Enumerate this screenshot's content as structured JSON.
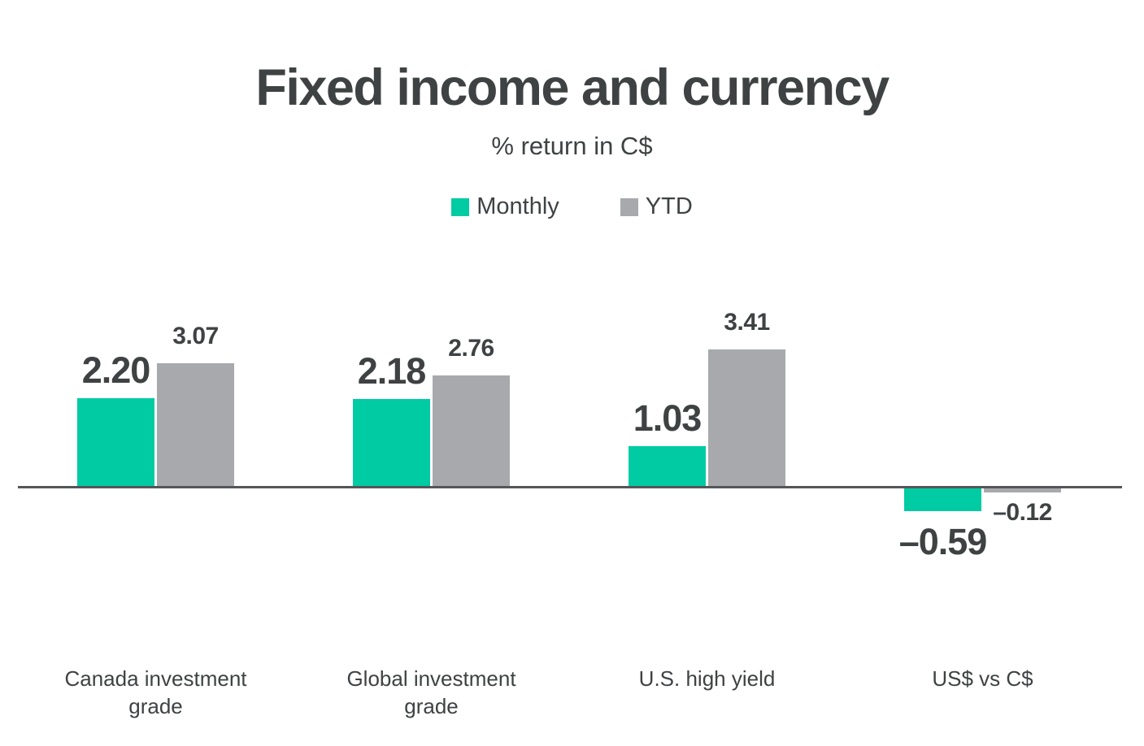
{
  "chart_data": {
    "type": "bar",
    "title": "Fixed income and currency",
    "subtitle": "% return in C$",
    "categories": [
      "Canada investment grade",
      "Global investment grade",
      "U.S. high yield",
      "US$ vs C$"
    ],
    "series": [
      {
        "name": "Monthly",
        "values": [
          2.2,
          2.18,
          1.03,
          -0.59
        ],
        "labels": [
          "2.20",
          "2.18",
          "1.03",
          "–0.59"
        ],
        "color": "#00cba3"
      },
      {
        "name": "YTD",
        "values": [
          3.07,
          2.76,
          3.41,
          -0.12
        ],
        "labels": [
          "3.07",
          "2.76",
          "3.41",
          "–0.12"
        ],
        "color": "#a7a9ac"
      }
    ],
    "ylabel": "% return in C$",
    "baseline": 0,
    "grid": false,
    "legend_position": "top",
    "axis_line_color": "#54565a",
    "text_color": "#3f4243",
    "background": "#ffffff"
  }
}
